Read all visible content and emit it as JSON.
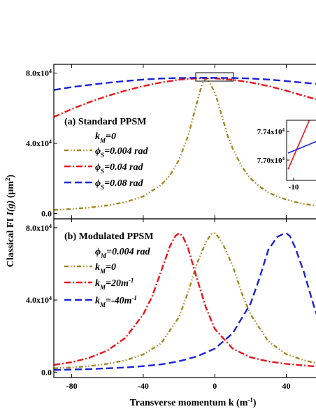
{
  "figure": {
    "ylabel": "Classical FI ",
    "ylabel_italic": "I(g)",
    "ylabel_unit": " (μm",
    "ylabel_unit_sup": "2",
    "ylabel_close": ")",
    "xlabel": "Transverse momentum k (m",
    "xlabel_sup": "-1",
    "xlabel_close": ")"
  },
  "chart_data": [
    {
      "type": "line",
      "panel": "(a) Standard PPSM",
      "x_range": [
        -90,
        57
      ],
      "ylim": [
        -3000,
        85000
      ],
      "y_ticks": [
        {
          "value": 0,
          "label": "0.0",
          "sup": ""
        },
        {
          "value": 40000,
          "label": "4.0x10",
          "sup": "4"
        },
        {
          "value": 80000,
          "label": "8.0x10",
          "sup": "4"
        }
      ],
      "legend_header": {
        "sym": "k",
        "sub": "M",
        "rest": "=0"
      },
      "series": [
        {
          "name": "=0.004 rad",
          "sym": "ϕ",
          "sub": "S",
          "color": "#A38721",
          "dash": "6,3,1.5,3,1.5,3",
          "x": [
            -90,
            -80,
            -70,
            -60,
            -50,
            -40,
            -30,
            -25,
            -20,
            -15,
            -10,
            -7,
            -5,
            -3,
            -1,
            0,
            1,
            3,
            5,
            7,
            10,
            15,
            20,
            25,
            30,
            35,
            40,
            45,
            50,
            57
          ],
          "y": [
            2100,
            2600,
            3400,
            4600,
            6500,
            9800,
            16300,
            21900,
            30500,
            44000,
            63000,
            74000,
            77000,
            75000,
            71000,
            69000,
            66000,
            59000,
            52000,
            45000,
            37000,
            27000,
            20000,
            15500,
            12000,
            9800,
            8000,
            6600,
            5500,
            4400
          ]
        },
        {
          "name": "=0.04 rad",
          "sym": "ϕ",
          "sub": "S",
          "color": "#E8141B",
          "dash": "9,3,2,3",
          "x": [
            -90,
            -80,
            -70,
            -60,
            -50,
            -40,
            -30,
            -20,
            -10,
            0,
            10,
            20,
            30,
            40,
            50,
            57
          ],
          "y": [
            55000,
            59500,
            63500,
            67000,
            70000,
            72600,
            74700,
            76200,
            77000,
            77000,
            76200,
            74700,
            72600,
            70000,
            67000,
            65000
          ]
        },
        {
          "name": "=0.08 rad",
          "sym": "ϕ",
          "sub": "S",
          "color": "#1B22D6",
          "dash": "10,5",
          "x": [
            -90,
            -80,
            -70,
            -60,
            -50,
            -40,
            -30,
            -20,
            -10,
            0,
            10,
            20,
            30,
            40,
            50,
            57
          ],
          "y": [
            70400,
            72000,
            73300,
            74500,
            75500,
            76300,
            76900,
            77200,
            77300,
            77300,
            77200,
            76900,
            76300,
            75500,
            74500,
            73900
          ]
        }
      ],
      "inset": {
        "y_ticks": [
          {
            "value": 77400,
            "label": "7.74x10",
            "sup": "4"
          },
          {
            "value": 77000,
            "label": "7.70x10",
            "sup": "4"
          }
        ],
        "x_tick_label": "-10"
      }
    },
    {
      "type": "line",
      "panel": "(b) Modulated PPSM",
      "x_range": [
        -90,
        57
      ],
      "ylim": [
        -3000,
        85000
      ],
      "x_ticks": [
        {
          "value": -80,
          "label": "-80"
        },
        {
          "value": -40,
          "label": "-40"
        },
        {
          "value": 0,
          "label": "0"
        },
        {
          "value": 40,
          "label": "40"
        }
      ],
      "y_ticks": [
        {
          "value": 0,
          "label": "0.0",
          "sup": ""
        },
        {
          "value": 40000,
          "label": "4.0x10",
          "sup": "4"
        },
        {
          "value": 80000,
          "label": "8.0x10",
          "sup": "4"
        }
      ],
      "legend_header": {
        "sym": "ϕ",
        "sub": "M",
        "rest": "=0.004 rad"
      },
      "series": [
        {
          "name": "=0",
          "sym": "k",
          "sub": "M",
          "sup": "",
          "color": "#A38721",
          "dash": "6,3,1.5,3,1.5,3",
          "x": [
            -90,
            -80,
            -70,
            -60,
            -50,
            -40,
            -30,
            -20,
            -15,
            -10,
            -5,
            -2,
            0,
            2,
            5,
            10,
            15,
            20,
            30,
            40,
            50,
            57
          ],
          "y": [
            2100,
            2600,
            3400,
            4600,
            6500,
            9800,
            16000,
            30500,
            44000,
            60000,
            72000,
            76500,
            77000,
            75000,
            70000,
            59000,
            44000,
            32000,
            17000,
            10000,
            6500,
            5000
          ]
        },
        {
          "name": "=20m",
          "sym": "k",
          "sub": "M",
          "sup": "-1",
          "color": "#E8141B",
          "dash": "9,3,2,3",
          "x": [
            -90,
            -80,
            -70,
            -60,
            -50,
            -40,
            -35,
            -30,
            -25,
            -22,
            -20,
            -18,
            -15,
            -10,
            -5,
            0,
            10,
            20,
            30,
            40,
            50,
            57
          ],
          "y": [
            4000,
            5500,
            8000,
            12000,
            19000,
            32000,
            42000,
            56000,
            70000,
            75500,
            77000,
            75500,
            69000,
            52000,
            36000,
            24000,
            13000,
            8200,
            5900,
            4600,
            3700,
            3100
          ]
        },
        {
          "name": "=-40m",
          "sym": "k",
          "sub": "M",
          "sup": "-1",
          "color": "#1B22D6",
          "dash": "10,5",
          "x": [
            -90,
            -80,
            -70,
            -60,
            -50,
            -40,
            -30,
            -20,
            -10,
            0,
            10,
            20,
            25,
            30,
            35,
            38,
            40,
            42,
            45,
            50,
            55,
            57
          ],
          "y": [
            1200,
            1400,
            1700,
            2100,
            2600,
            3300,
            4300,
            6000,
            8700,
            13000,
            21500,
            38000,
            52000,
            68000,
            75000,
            76500,
            77000,
            75500,
            69000,
            55000,
            38000,
            32000
          ]
        }
      ]
    }
  ]
}
